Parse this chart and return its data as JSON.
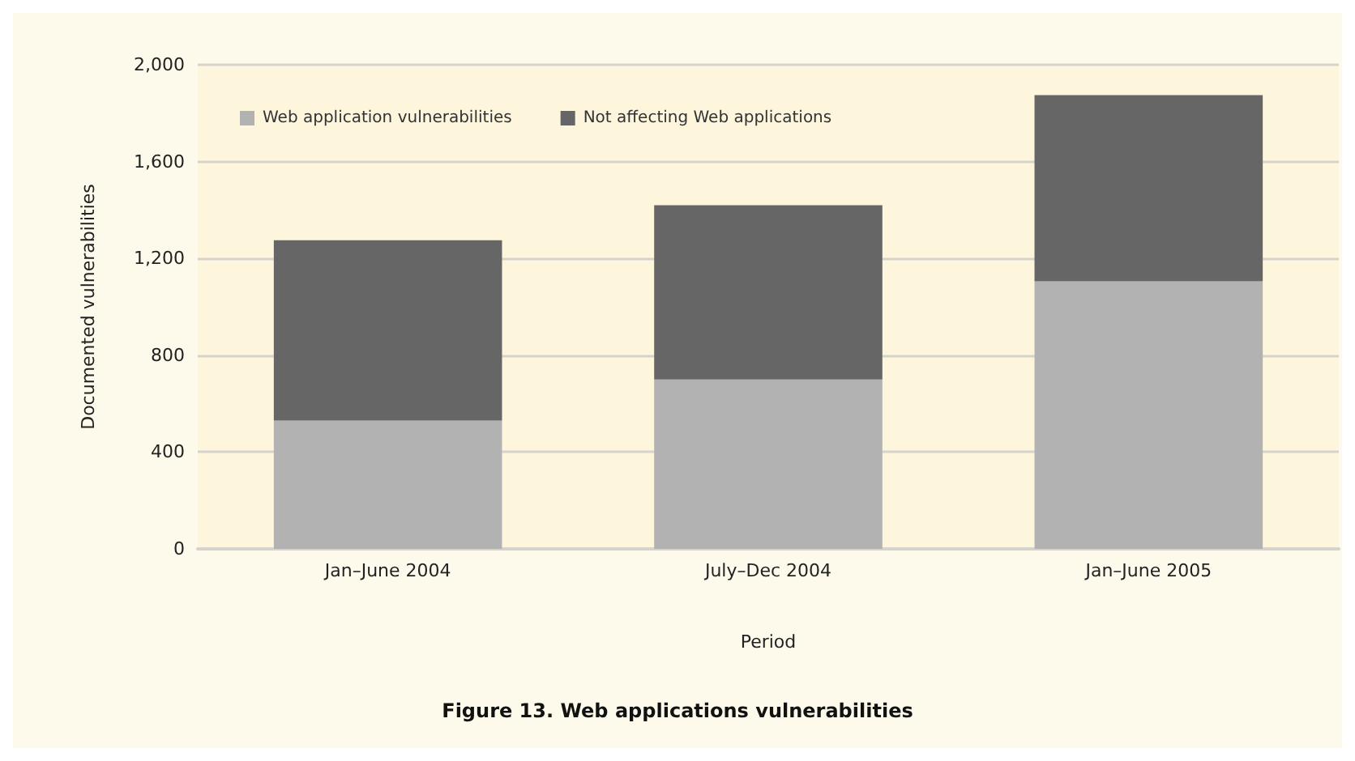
{
  "chart_data": {
    "type": "bar",
    "title": "Figure 13. Web applications vulnerabilities",
    "xlabel": "Period",
    "ylabel": "Documented vulnerabilities",
    "categories": [
      "Jan–June 2004",
      "July–Dec 2004",
      "Jan–June 2005"
    ],
    "stacked": true,
    "series": [
      {
        "name": "Web application vulnerabilities",
        "color": "#b2b2b2",
        "values": [
          530,
          700,
          1105
        ]
      },
      {
        "name": "Not affecting Web applications",
        "color": "#666666",
        "values": [
          745,
          720,
          770
        ]
      }
    ],
    "ylim": [
      0,
      2000
    ],
    "yticks": [
      0,
      400,
      800,
      {
        "value": 1200,
        "label": "1,200"
      },
      {
        "value": 1600,
        "label": "1,600"
      },
      {
        "value": 2000,
        "label": "2,000"
      }
    ],
    "grid": "y",
    "legend": "top left"
  }
}
